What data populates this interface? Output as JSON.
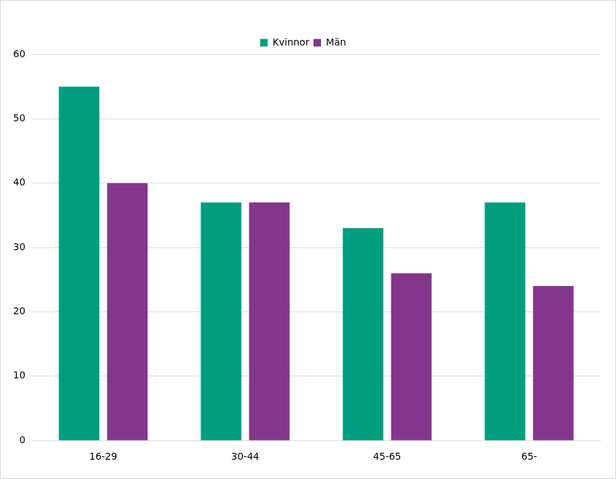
{
  "chart_data": {
    "type": "bar",
    "categories": [
      "16-29",
      "30-44",
      "45-65",
      "65-"
    ],
    "series": [
      {
        "name": "Kvinnor",
        "color": "#009e7e",
        "values": [
          55,
          37,
          33,
          37
        ]
      },
      {
        "name": "Män",
        "color": "#84368c",
        "values": [
          40,
          37,
          26,
          24
        ]
      }
    ],
    "ylim": [
      0,
      60
    ],
    "yticks": [
      0,
      10,
      20,
      30,
      40,
      50,
      60
    ],
    "grid": true,
    "legend": "top"
  }
}
